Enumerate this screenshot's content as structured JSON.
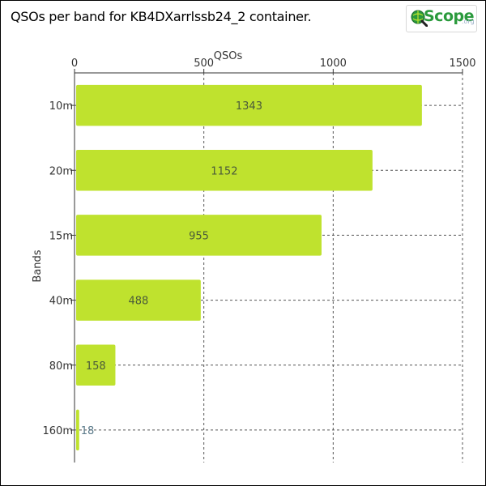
{
  "header": {
    "title": "QSOs per band for KB4DXarrlssb24_2 container."
  },
  "logo": {
    "brand_text": "Scope",
    "brand_suffix": ".org",
    "brand_color": "#2a9a3c"
  },
  "chart_data": {
    "type": "bar",
    "orientation": "horizontal",
    "categories": [
      "10m",
      "20m",
      "15m",
      "40m",
      "80m",
      "160m"
    ],
    "values": [
      1343,
      1152,
      955,
      488,
      158,
      18
    ],
    "xlabel": "QSOs",
    "ylabel": "Bands",
    "xlim": [
      0,
      1500
    ],
    "xticks": [
      0,
      500,
      1000,
      1500
    ],
    "x_axis_position": "top",
    "grid": true,
    "bar_color": "#bfe22e",
    "data_labels": true
  }
}
